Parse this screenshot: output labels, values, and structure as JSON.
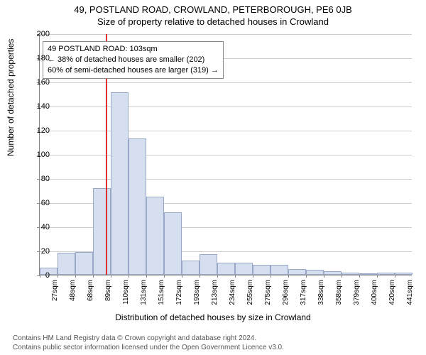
{
  "title_main": "49, POSTLAND ROAD, CROWLAND, PETERBOROUGH, PE6 0JB",
  "title_sub": "Size of property relative to detached houses in Crowland",
  "y_axis_label": "Number of detached properties",
  "x_axis_label": "Distribution of detached houses by size in Crowland",
  "chart": {
    "type": "histogram",
    "ylim": [
      0,
      200
    ],
    "ytick_step": 20,
    "bar_fill": "#d5dff0",
    "bar_stroke": "#9aa8c7",
    "grid_color": "#cccccc",
    "background_color": "#ffffff",
    "marker_color": "#e03030",
    "marker_x_index": 3.7,
    "x_labels": [
      "27sqm",
      "48sqm",
      "68sqm",
      "89sqm",
      "110sqm",
      "131sqm",
      "151sqm",
      "172sqm",
      "193sqm",
      "213sqm",
      "234sqm",
      "255sqm",
      "275sqm",
      "296sqm",
      "317sqm",
      "338sqm",
      "358sqm",
      "379sqm",
      "400sqm",
      "420sqm",
      "441sqm"
    ],
    "values": [
      6,
      18,
      19,
      72,
      151,
      113,
      65,
      52,
      12,
      17,
      10,
      10,
      8,
      8,
      5,
      4,
      3,
      2,
      0,
      2,
      2
    ]
  },
  "annotation": {
    "line1": "49 POSTLAND ROAD: 103sqm",
    "line2": "← 38% of detached houses are smaller (202)",
    "line3": "60% of semi-detached houses are larger (319) →"
  },
  "footer": {
    "line1": "Contains HM Land Registry data © Crown copyright and database right 2024.",
    "line2": "Contains public sector information licensed under the Open Government Licence v3.0."
  }
}
